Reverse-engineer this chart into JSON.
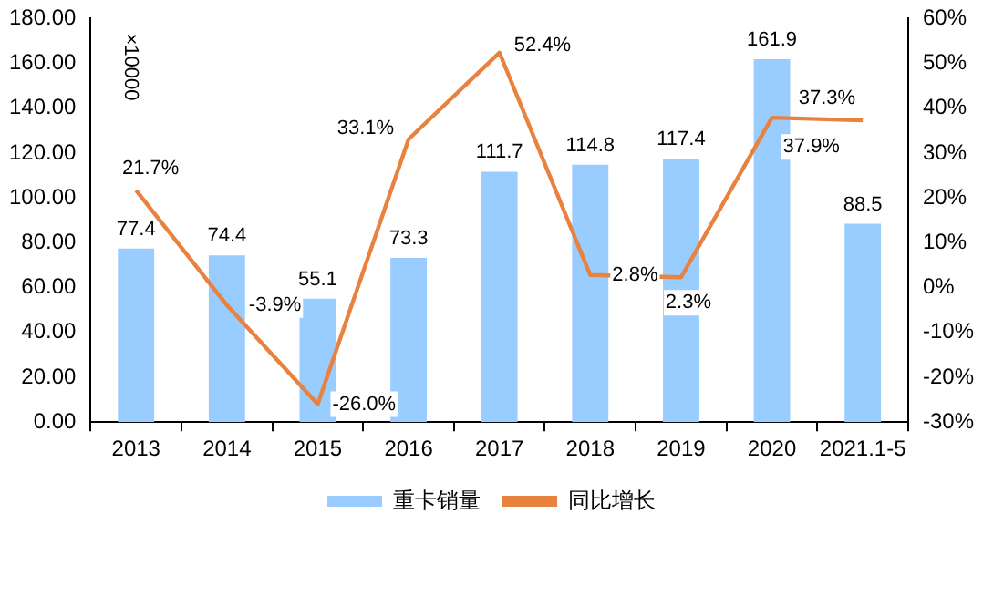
{
  "chart_data": {
    "type": "bar",
    "categories": [
      "2013",
      "2014",
      "2015",
      "2016",
      "2017",
      "2018",
      "2019",
      "2020",
      "2021.1-5"
    ],
    "series": [
      {
        "name": "重卡销量",
        "color": "#99ccff",
        "values": [
          77.4,
          74.4,
          55.1,
          73.3,
          111.7,
          114.8,
          117.4,
          161.9,
          88.5
        ],
        "value_labels": [
          "77.4",
          "74.4",
          "55.1",
          "73.3",
          "111.7",
          "114.8",
          "117.4",
          "161.9",
          "88.5"
        ]
      },
      {
        "name": "同比增长",
        "type": "line",
        "axis": "y2",
        "color": "#e8823e",
        "values": [
          21.7,
          -3.9,
          -26.0,
          33.1,
          52.4,
          2.8,
          2.3,
          37.9,
          37.3
        ],
        "value_labels": [
          "21.7%",
          "-3.9%",
          "-26.0%",
          "33.1%",
          "52.4%",
          "2.8%",
          "2.3%",
          "37.9%",
          "37.3%"
        ]
      }
    ],
    "ylim": [
      0,
      180
    ],
    "yticks": [
      {
        "value": 0,
        "label": "0.00"
      },
      {
        "value": 20,
        "label": "20.00"
      },
      {
        "value": 40,
        "label": "40.00"
      },
      {
        "value": 60,
        "label": "60.00"
      },
      {
        "value": 80,
        "label": "80.00"
      },
      {
        "value": 100,
        "label": "100.00"
      },
      {
        "value": 120,
        "label": "120.00"
      },
      {
        "value": 140,
        "label": "140.00"
      },
      {
        "value": 160,
        "label": "160.00"
      },
      {
        "value": 180,
        "label": "180.00"
      }
    ],
    "y2lim": [
      -30,
      60
    ],
    "y2ticks": [
      {
        "value": -30,
        "label": "-30%"
      },
      {
        "value": -20,
        "label": "-20%"
      },
      {
        "value": -10,
        "label": "-10%"
      },
      {
        "value": 0,
        "label": "0%"
      },
      {
        "value": 10,
        "label": "10%"
      },
      {
        "value": 20,
        "label": "20%"
      },
      {
        "value": 30,
        "label": "30%"
      },
      {
        "value": 40,
        "label": "40%"
      },
      {
        "value": 50,
        "label": "50%"
      },
      {
        "value": 60,
        "label": "60%"
      }
    ],
    "annotations": [
      "×10000"
    ],
    "grid": false,
    "legend": "bottom",
    "marker": "none",
    "line_style": "solid"
  }
}
